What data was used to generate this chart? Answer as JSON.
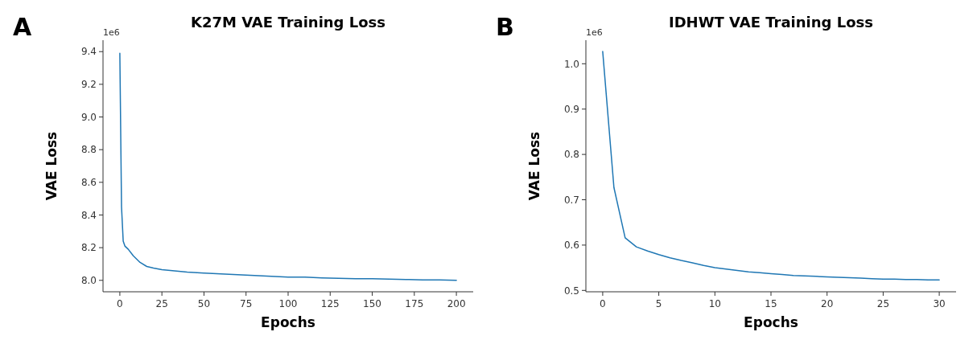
{
  "chart_data": [
    {
      "type": "line",
      "title": "K27M VAE Training Loss",
      "xlabel": "Epochs",
      "ylabel": "VAE Loss",
      "annotations": [
        "A",
        "1e6"
      ],
      "series": [
        {
          "color": "#1f77b4",
          "x": [
            0,
            1,
            2,
            3,
            5,
            8,
            12,
            16,
            20,
            25,
            30,
            40,
            50,
            60,
            70,
            80,
            90,
            100,
            110,
            120,
            130,
            140,
            150,
            160,
            170,
            180,
            190,
            200
          ],
          "values": [
            9.39,
            8.45,
            8.24,
            8.21,
            8.19,
            8.15,
            8.11,
            8.085,
            8.075,
            8.065,
            8.06,
            8.05,
            8.045,
            8.04,
            8.035,
            8.03,
            8.025,
            8.02,
            8.02,
            8.015,
            8.012,
            8.01,
            8.01,
            8.008,
            8.005,
            8.003,
            8.002,
            8.0
          ]
        }
      ],
      "xlim": [
        -10,
        210
      ],
      "xticks": [
        0,
        25,
        50,
        75,
        100,
        125,
        150,
        175,
        200
      ],
      "ylim": [
        7.93,
        9.47
      ],
      "yticks": [
        {
          "value": 8.0,
          "label": "8.0"
        },
        {
          "value": 8.2,
          "label": "8.2"
        },
        {
          "value": 8.4,
          "label": "8.4"
        },
        {
          "value": 8.6,
          "label": "8.6"
        },
        {
          "value": 8.8,
          "label": "8.8"
        },
        {
          "value": 9.0,
          "label": "9.0"
        },
        {
          "value": 9.2,
          "label": "9.2"
        },
        {
          "value": 9.4,
          "label": "9.4"
        }
      ]
    },
    {
      "type": "line",
      "title": "IDHWT VAE Training Loss",
      "xlabel": "Epochs",
      "ylabel": "VAE Loss",
      "annotations": [
        "B",
        "1e6"
      ],
      "series": [
        {
          "color": "#1f77b4",
          "x": [
            0,
            1,
            2,
            3,
            4,
            5,
            6,
            7,
            8,
            9,
            10,
            11,
            12,
            13,
            14,
            15,
            16,
            17,
            18,
            19,
            20,
            21,
            22,
            23,
            24,
            25,
            26,
            27,
            28,
            29,
            30
          ],
          "values": [
            1.027,
            0.727,
            0.616,
            0.596,
            0.587,
            0.579,
            0.572,
            0.566,
            0.561,
            0.555,
            0.55,
            0.547,
            0.544,
            0.541,
            0.539,
            0.537,
            0.535,
            0.533,
            0.532,
            0.531,
            0.53,
            0.529,
            0.528,
            0.527,
            0.526,
            0.525,
            0.525,
            0.524,
            0.524,
            0.523,
            0.523
          ]
        }
      ],
      "xlim": [
        -1.5,
        31.5
      ],
      "xticks": [
        0,
        5,
        10,
        15,
        20,
        25,
        30
      ],
      "ylim": [
        0.497,
        1.052
      ],
      "yticks": [
        {
          "value": 0.5,
          "label": "0.5"
        },
        {
          "value": 0.6,
          "label": "0.6"
        },
        {
          "value": 0.7,
          "label": "0.7"
        },
        {
          "value": 0.8,
          "label": "0.8"
        },
        {
          "value": 0.9,
          "label": "0.9"
        },
        {
          "value": 1.0,
          "label": "1.0"
        }
      ]
    }
  ]
}
